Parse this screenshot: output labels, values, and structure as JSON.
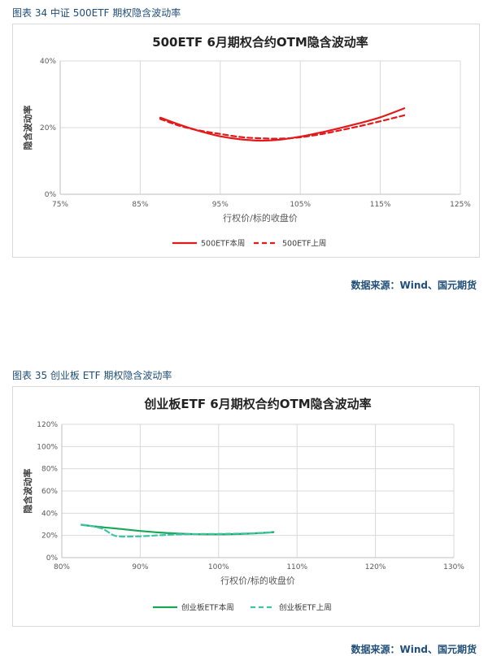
{
  "figures": [
    {
      "caption": "图表 34  中证 500ETF 期权隐含波动率",
      "source": "数据来源：Wind、国元期货"
    },
    {
      "caption": "图表 35  创业板 ETF 期权隐含波动率",
      "source": "数据来源：Wind、国元期货"
    }
  ],
  "chart_data": [
    {
      "type": "line",
      "title": "500ETF 6月期权合约OTM隐含波动率",
      "xlabel": "行权价/标的收盘价",
      "ylabel": "隐含波动率",
      "xlim": [
        75,
        125
      ],
      "ylim": [
        0,
        40
      ],
      "x_ticks": [
        75,
        85,
        95,
        105,
        115,
        125
      ],
      "x_tick_labels": [
        "75%",
        "85%",
        "95%",
        "105%",
        "115%",
        "125%"
      ],
      "y_ticks": [
        0,
        20,
        40
      ],
      "y_tick_labels": [
        "0%",
        "20%",
        "40%"
      ],
      "grid": true,
      "legend_position": "bottom",
      "series": [
        {
          "name": "500ETF本周",
          "color": "#e31a1c",
          "dash": "solid",
          "x": [
            87.5,
            90,
            92.5,
            95,
            97.5,
            100,
            102.5,
            105,
            107.5,
            110,
            112.5,
            115,
            118
          ],
          "y": [
            23.0,
            20.8,
            18.9,
            17.4,
            16.5,
            16.1,
            16.4,
            17.3,
            18.5,
            19.9,
            21.4,
            23.1,
            25.8
          ]
        },
        {
          "name": "500ETF上周",
          "color": "#e31a1c",
          "dash": "dashed",
          "x": [
            87.5,
            90,
            92.5,
            95,
            97.5,
            100,
            102.5,
            105,
            107.5,
            110,
            112.5,
            115,
            118
          ],
          "y": [
            22.6,
            20.5,
            19.1,
            18.1,
            17.2,
            16.8,
            16.7,
            17.1,
            18.0,
            19.2,
            20.5,
            21.9,
            23.7
          ]
        }
      ]
    },
    {
      "type": "line",
      "title": "创业板ETF 6月期权合约OTM隐含波动率",
      "xlabel": "行权价/标的收盘价",
      "ylabel": "隐含波动率",
      "xlim": [
        80,
        130
      ],
      "ylim": [
        0,
        120
      ],
      "x_ticks": [
        80,
        90,
        100,
        110,
        120,
        130
      ],
      "x_tick_labels": [
        "80%",
        "90%",
        "100%",
        "110%",
        "120%",
        "130%"
      ],
      "y_ticks": [
        0,
        20,
        40,
        60,
        80,
        100,
        120
      ],
      "y_tick_labels": [
        "0%",
        "20%",
        "40%",
        "60%",
        "80%",
        "100%",
        "120%"
      ],
      "grid": true,
      "legend_position": "bottom",
      "series": [
        {
          "name": "创业板ETF本周",
          "color": "#1aa657",
          "dash": "solid",
          "x": [
            82.5,
            85,
            87.5,
            90,
            92.5,
            95,
            97.5,
            100,
            102.5,
            105,
            107
          ],
          "y": [
            29.5,
            27.5,
            25.8,
            24.0,
            22.6,
            21.6,
            21.1,
            21.0,
            21.3,
            22.0,
            23.0
          ]
        },
        {
          "name": "创业板ETF上周",
          "color": "#3cc4a6",
          "dash": "dashed",
          "x": [
            82.5,
            85,
            86.5,
            87.5,
            90,
            92.5,
            95,
            97.5,
            100,
            102.5,
            105,
            107
          ],
          "y": [
            29.8,
            26.5,
            20.5,
            19.0,
            19.2,
            20.2,
            20.9,
            21.3,
            21.4,
            21.6,
            22.0,
            22.8
          ]
        }
      ]
    }
  ]
}
